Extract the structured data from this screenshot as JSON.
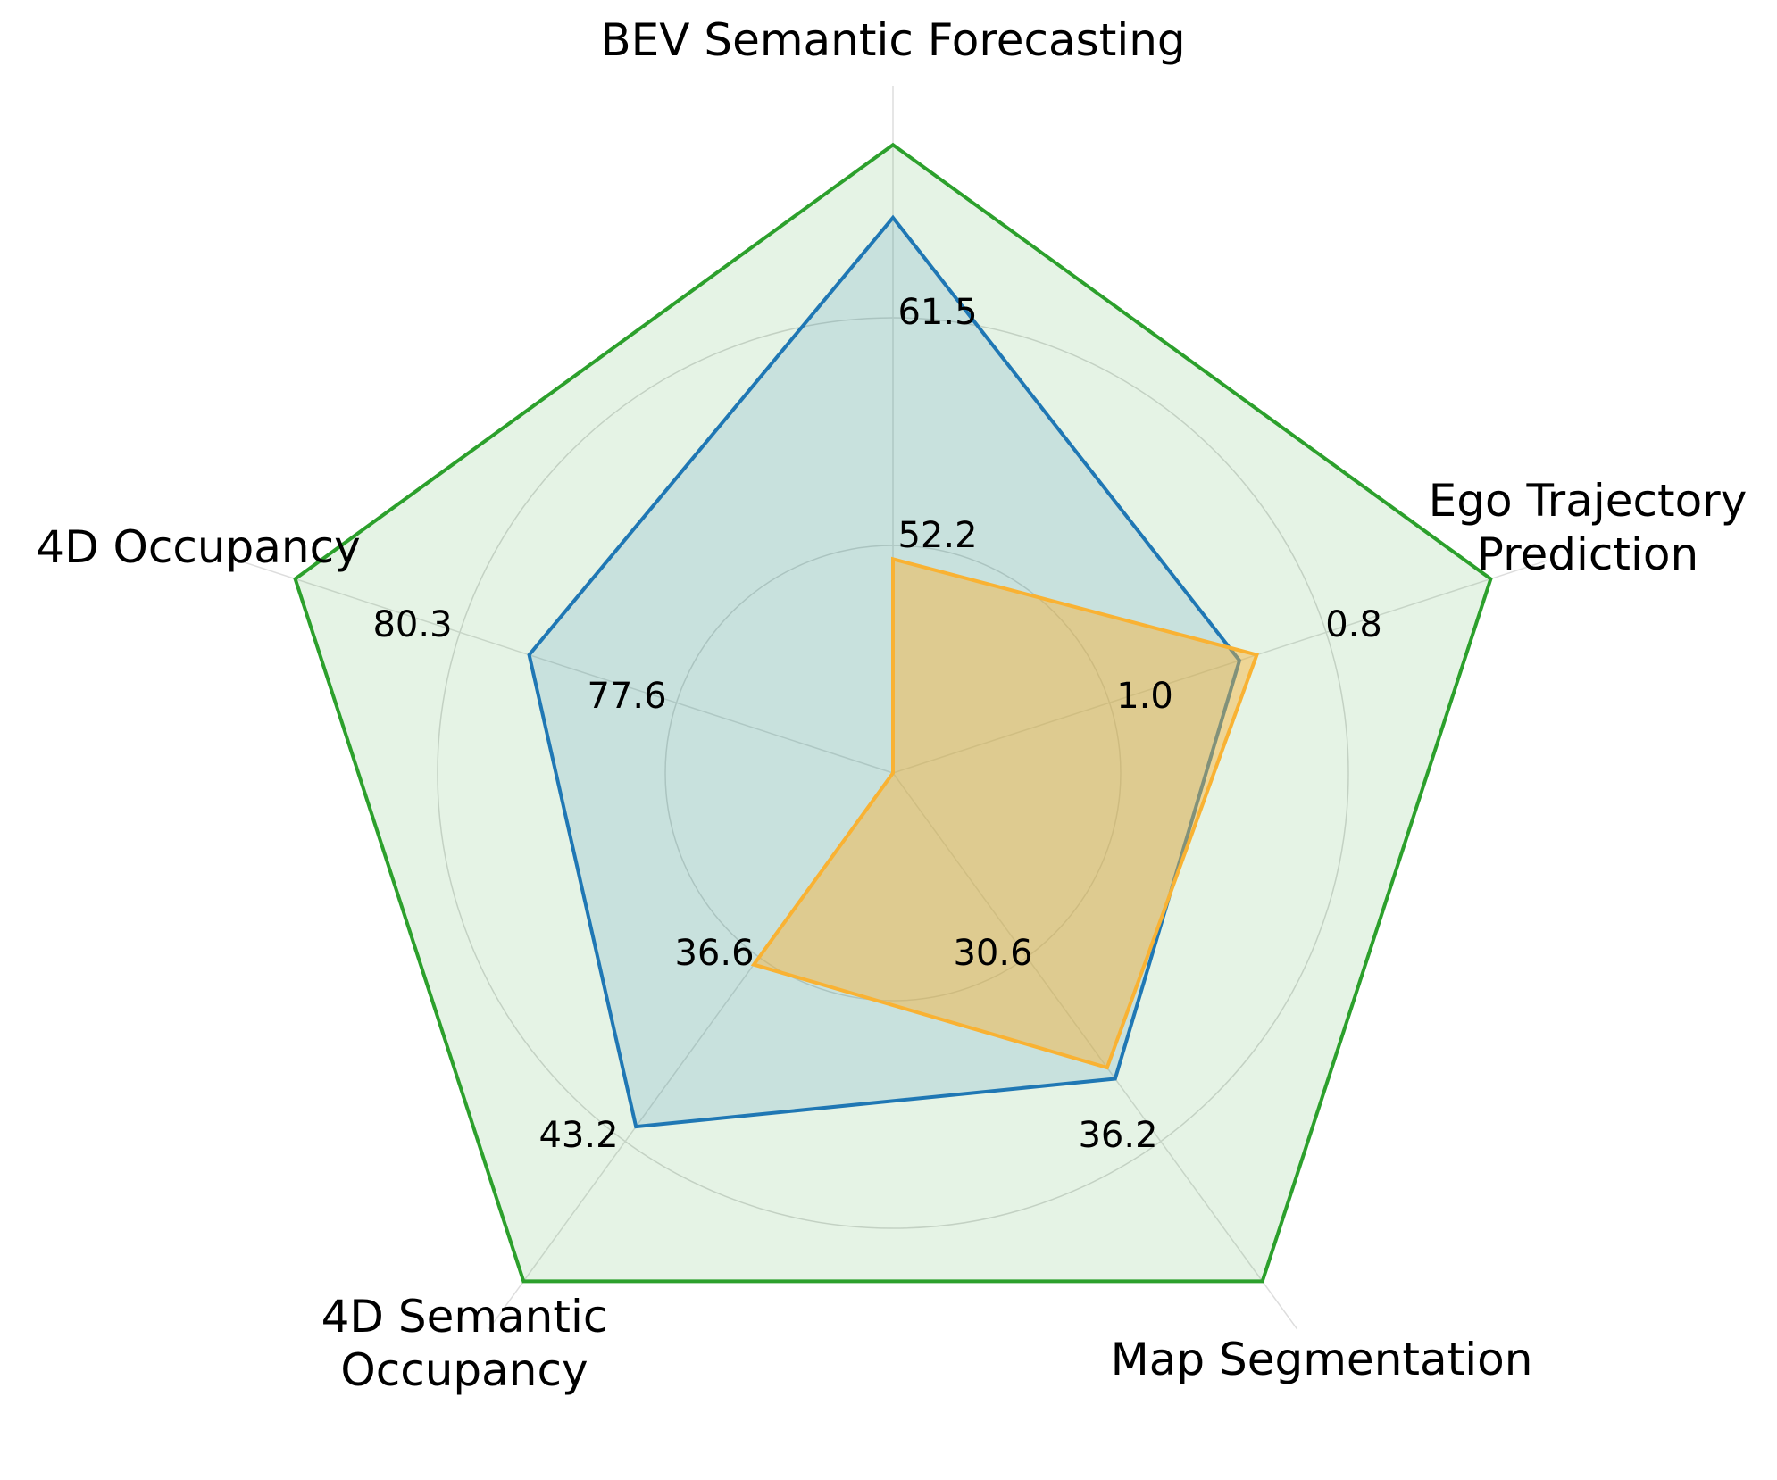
{
  "chart_data": {
    "type": "radar",
    "title": "",
    "axes": [
      {
        "label": "BEV Semantic Forecasting",
        "ticks": [
          "52.2",
          "61.5"
        ]
      },
      {
        "label": "Ego Trajectory Prediction",
        "ticks": [
          "1.0",
          "0.8"
        ]
      },
      {
        "label": "Map Segmentation",
        "ticks": [
          "30.6",
          "36.2"
        ]
      },
      {
        "label": "4D Semantic Occupancy",
        "ticks": [
          "36.6",
          "43.2"
        ]
      },
      {
        "label": "4D Occupancy",
        "ticks": [
          "77.6",
          "80.3"
        ]
      }
    ],
    "radial_levels": [
      0.5,
      1.0
    ],
    "series": [
      {
        "color": "#2ca02c",
        "fill_opacity": 0.12,
        "values": [
          1.38,
          1.38,
          1.38,
          1.38,
          1.38
        ]
      },
      {
        "color": "#1f77b4",
        "fill_opacity": 0.14,
        "values": [
          1.22,
          0.8,
          0.83,
          0.96,
          0.84
        ]
      },
      {
        "color": "#f9b233",
        "fill_opacity": 0.45,
        "values": [
          0.47,
          0.84,
          0.8,
          0.52,
          0.0
        ]
      }
    ],
    "grid": true,
    "legend": "none"
  }
}
